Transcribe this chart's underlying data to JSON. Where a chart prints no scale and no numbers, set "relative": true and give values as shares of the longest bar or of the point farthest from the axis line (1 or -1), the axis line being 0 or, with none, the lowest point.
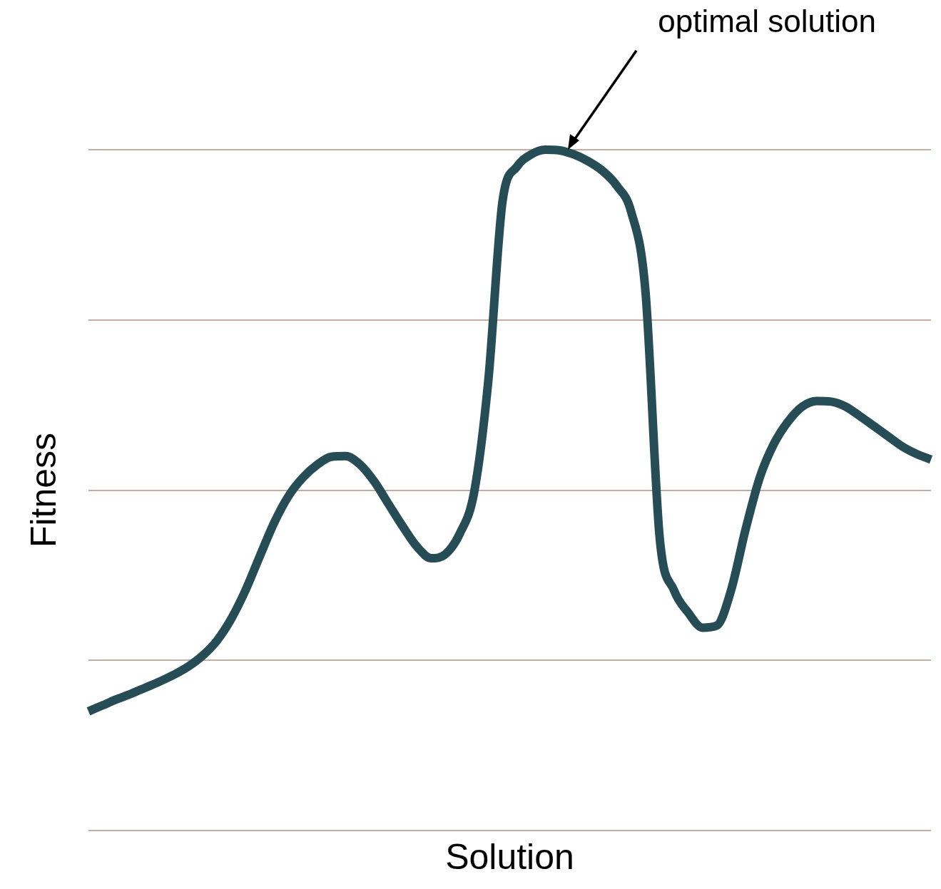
{
  "chart_data": {
    "type": "line",
    "relative": true,
    "xlabel": "Solution",
    "ylabel": "Fitness",
    "grid": "y",
    "legend": false,
    "marker": "none",
    "line_style": "solid",
    "annotations": [
      "optimal solution"
    ],
    "categories": [
      null,
      null,
      null,
      null,
      null,
      null,
      null,
      null,
      null,
      null,
      null,
      null,
      null,
      null,
      null,
      null,
      null,
      null,
      null,
      null,
      null,
      null,
      null,
      null,
      null,
      null,
      null,
      null,
      null,
      null,
      null,
      null,
      null,
      null,
      null,
      null,
      null,
      null,
      null,
      null,
      null,
      null,
      null,
      null,
      null,
      null,
      null,
      null,
      null,
      null,
      null,
      null,
      null,
      null,
      null,
      null,
      null,
      null,
      null,
      null
    ],
    "series": [
      {
        "color": "#264d55",
        "values": [
          0.175,
          0.184,
          0.193,
          0.201,
          0.21,
          0.219,
          0.229,
          0.241,
          0.257,
          0.279,
          0.311,
          0.353,
          0.403,
          0.452,
          0.491,
          0.518,
          0.537,
          0.549,
          0.55,
          0.538,
          0.513,
          0.48,
          0.447,
          0.417,
          0.4,
          0.406,
          0.436,
          0.496,
          0.661,
          0.925,
          0.975,
          0.993,
          1,
          0.999,
          0.993,
          0.983,
          0.969,
          0.947,
          0.909,
          0.793,
          0.43,
          0.353,
          0.32,
          0.298,
          0.301,
          0.353,
          0.441,
          0.518,
          0.568,
          0.601,
          0.623,
          0.631,
          0.63,
          0.623,
          0.609,
          0.594,
          0.579,
          0.564,
          0.553,
          0.545
        ]
      }
    ]
  }
}
